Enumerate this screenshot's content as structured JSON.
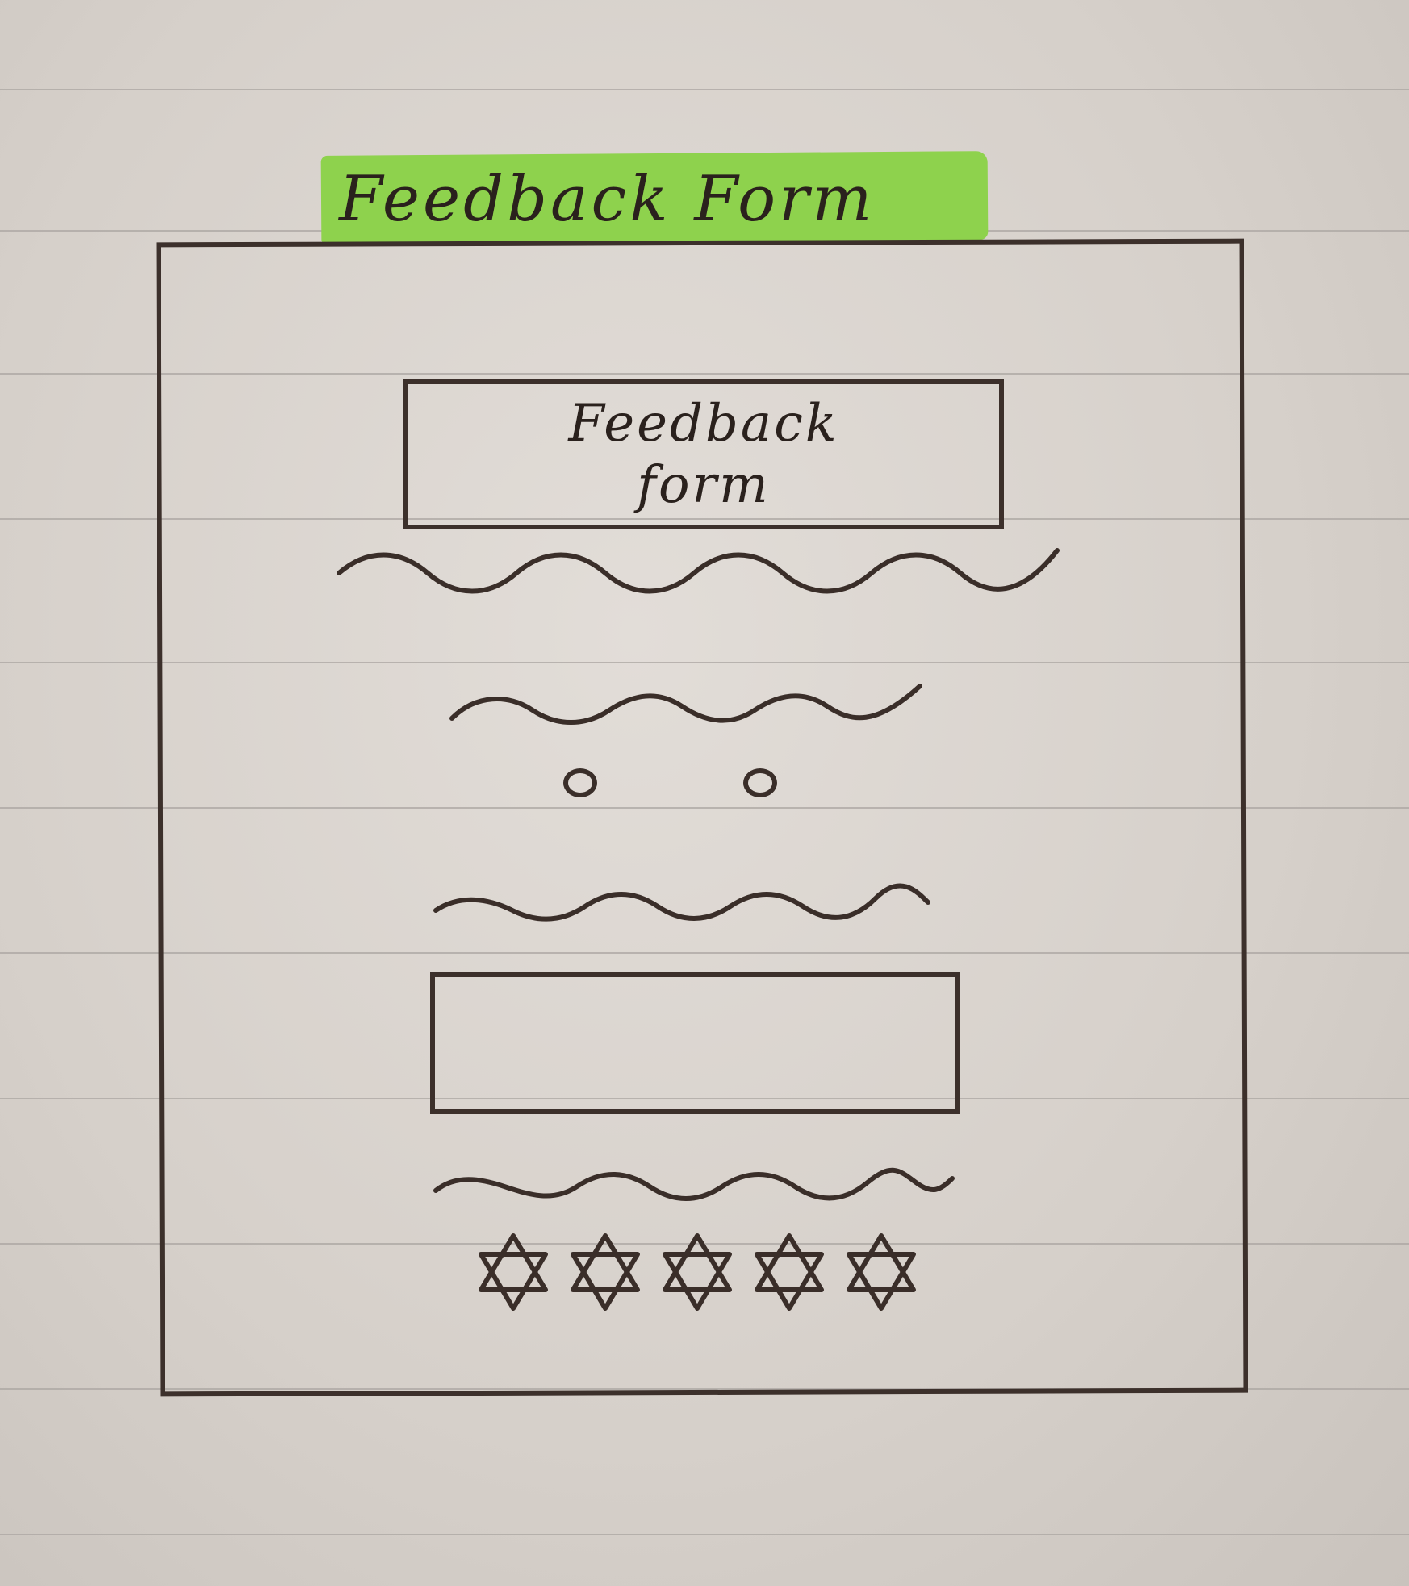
{
  "sketch": {
    "title": "Feedback Form",
    "header_line1": "Feedback",
    "header_line2": "form",
    "rating_stars": 5,
    "highlight_color": "#8ed24d",
    "ink_color": "#3a2e29"
  }
}
